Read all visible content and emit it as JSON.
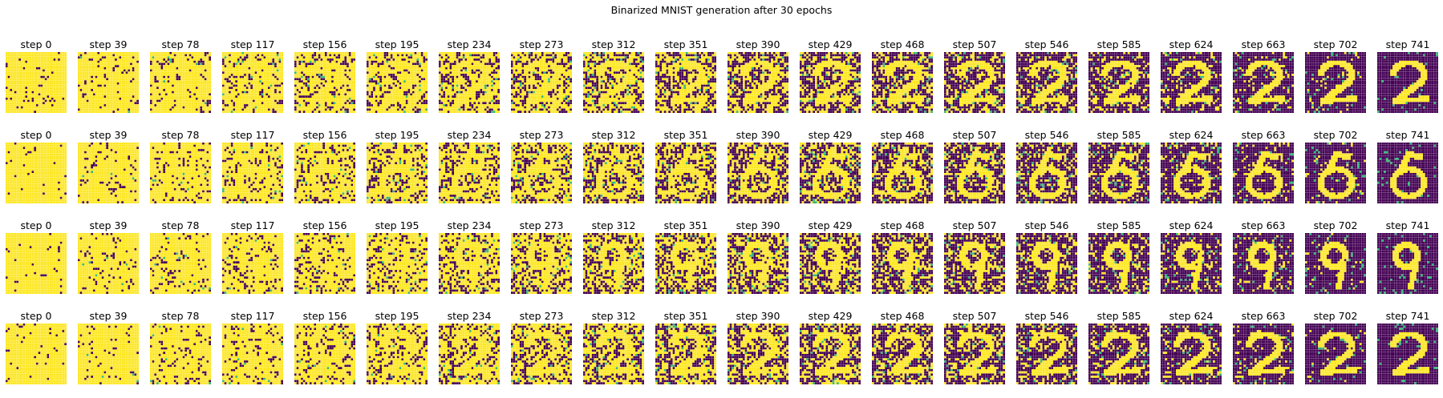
{
  "chart_data": {
    "type": "heatmap",
    "title": "Binarized MNIST generation after 30 epochs",
    "rows": 4,
    "panel_titles": [
      "step 0",
      "step 39",
      "step 78",
      "step 117",
      "step 156",
      "step 195",
      "step 234",
      "step 273",
      "step 312",
      "step 351",
      "step 390",
      "step 429",
      "step 468",
      "step 507",
      "step 546",
      "step 585",
      "step 624",
      "step 663",
      "step 702",
      "step 741"
    ],
    "steps": [
      0,
      39,
      78,
      117,
      156,
      195,
      234,
      273,
      312,
      351,
      390,
      429,
      468,
      507,
      546,
      585,
      624,
      663,
      702,
      741
    ],
    "image_size": [
      28,
      28
    ],
    "colormap": "viridis",
    "value_colors": {
      "masked": "#fde725",
      "one": "#fde725",
      "zero": "#440154",
      "sampled_border": "#35b779"
    },
    "final_digits": [
      "2",
      "6",
      "9",
      "2"
    ],
    "axes": "off"
  }
}
